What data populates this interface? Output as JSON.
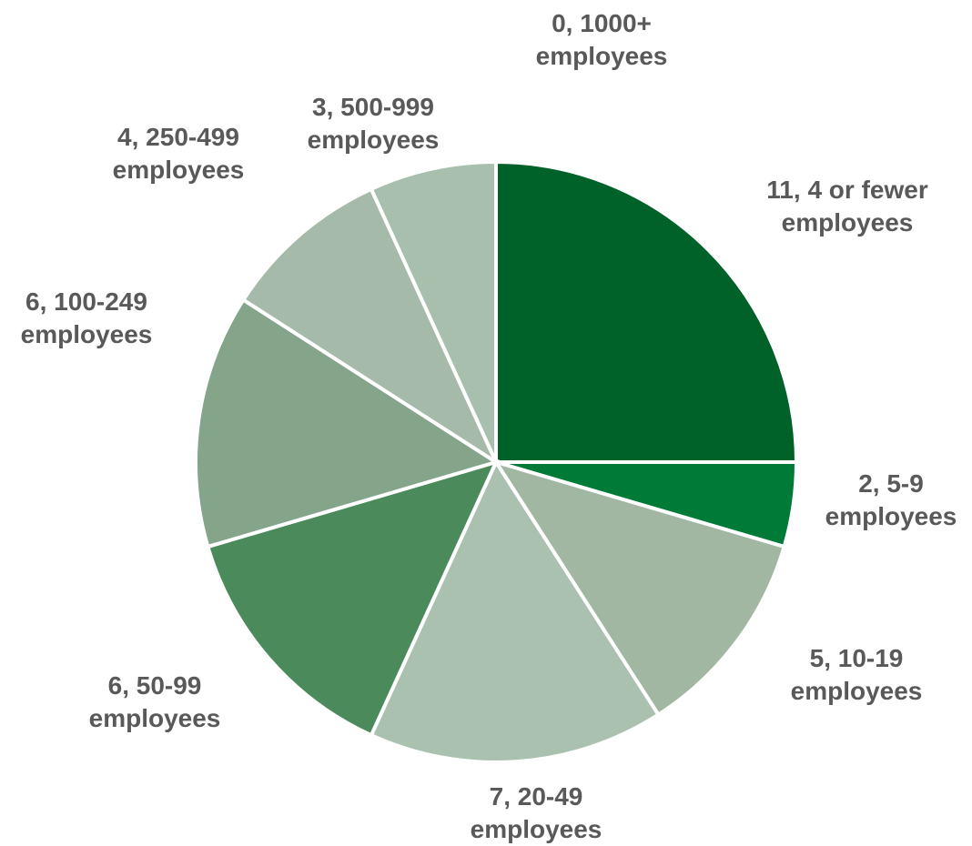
{
  "chart_data": {
    "type": "pie",
    "start_angle": "12 o'clock, clockwise",
    "slices": [
      {
        "label": "11, 4 or fewer employees",
        "label_lines": [
          "11, 4 or fewer",
          "employees"
        ],
        "value": 11,
        "color": "#006229"
      },
      {
        "label": "2, 5-9 employees",
        "label_lines": [
          "2, 5-9",
          "employees"
        ],
        "value": 2,
        "color": "#007a37"
      },
      {
        "label": "5, 10-19 employees",
        "label_lines": [
          "5, 10-19",
          "employees"
        ],
        "value": 5,
        "color": "#a1b7a1"
      },
      {
        "label": "7, 20-49 employees",
        "label_lines": [
          "7, 20-49",
          "employees"
        ],
        "value": 7,
        "color": "#abc1b0"
      },
      {
        "label": "6, 50-99 employees",
        "label_lines": [
          "6, 50-99",
          "employees"
        ],
        "value": 6,
        "color": "#4b8a5a"
      },
      {
        "label": "6, 100-249 employees",
        "label_lines": [
          "6, 100-249",
          "employees"
        ],
        "value": 6,
        "color": "#84a589"
      },
      {
        "label": "4, 250-499 employees",
        "label_lines": [
          "4, 250-499",
          "employees"
        ],
        "value": 4,
        "color": "#a6baa9"
      },
      {
        "label": "3, 500-999 employees",
        "label_lines": [
          "3, 500-999",
          "employees"
        ],
        "value": 3,
        "color": "#a9bfad"
      },
      {
        "label": "0, 1000+ employees",
        "label_lines": [
          "0, 1000+",
          "employees"
        ],
        "value": 0,
        "color": "#8fb08f"
      }
    ]
  }
}
